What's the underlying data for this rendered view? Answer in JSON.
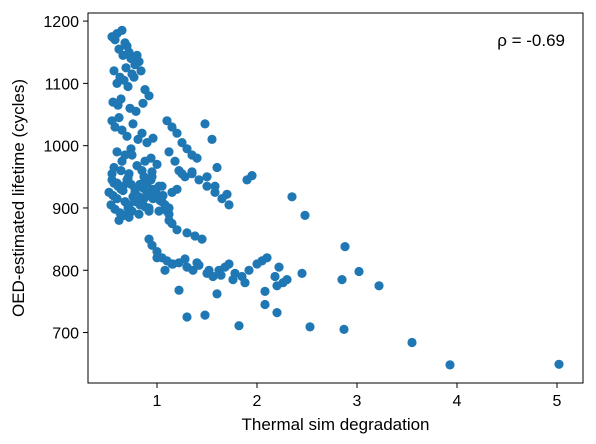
{
  "chart_data": {
    "type": "scatter",
    "title": "",
    "xlabel": "Thermal sim degradation",
    "ylabel": "OED-estimated lifetime (cycles)",
    "xlim": [
      0.31,
      5.26
    ],
    "ylim": [
      619,
      1213
    ],
    "xticks": [
      1,
      2,
      3,
      4,
      5
    ],
    "yticks": [
      700,
      800,
      900,
      1000,
      1100,
      1200
    ],
    "grid": false,
    "annotation": "ρ = -0.69",
    "marker_color": "#1f77b4",
    "series": [
      {
        "x": [
          0.55,
          0.6,
          0.65,
          0.68,
          0.7,
          0.72,
          0.58,
          0.62,
          0.66,
          0.74,
          0.78,
          0.8,
          0.57,
          0.63,
          0.69,
          0.75,
          0.82,
          0.6,
          0.67,
          0.71,
          0.77,
          0.84,
          0.88,
          0.92,
          0.56,
          0.61,
          0.64,
          0.73,
          0.79,
          0.86,
          0.55,
          0.58,
          0.62,
          0.65,
          0.7,
          0.76,
          0.81,
          0.85,
          0.9,
          0.96,
          0.6,
          0.68,
          0.74,
          0.88,
          0.94,
          1.0,
          0.57,
          0.64,
          0.72,
          0.8,
          0.87,
          0.95,
          0.55,
          0.6,
          0.66,
          0.71,
          0.78,
          0.83,
          0.9,
          0.98,
          0.52,
          0.56,
          0.6,
          0.64,
          0.68,
          0.72,
          0.76,
          0.8,
          0.84,
          0.88,
          0.92,
          0.96,
          1.0,
          1.05,
          1.1,
          0.54,
          0.58,
          0.63,
          0.67,
          0.71,
          0.75,
          0.79,
          0.83,
          0.87,
          0.91,
          0.95,
          0.99,
          1.03,
          1.08,
          1.12,
          0.57,
          0.61,
          0.66,
          0.7,
          0.74,
          0.78,
          0.82,
          0.86,
          0.9,
          0.94,
          0.98,
          1.02,
          1.06,
          0.55,
          0.65,
          0.75,
          0.85,
          0.95,
          1.05,
          1.15,
          0.62,
          0.72,
          0.82,
          0.92,
          1.02,
          1.12,
          1.1,
          1.15,
          1.2,
          1.25,
          1.3,
          1.35,
          1.4,
          1.48,
          1.55,
          1.6,
          1.12,
          1.18,
          1.22,
          1.28,
          1.35,
          1.42,
          1.5,
          1.58,
          1.65,
          1.72,
          1.12,
          1.15,
          1.2,
          1.3,
          1.38,
          1.45,
          1.2,
          1.25,
          1.35,
          1.5,
          1.58,
          1.7,
          1.9,
          1.95,
          2.35,
          0.92,
          0.95,
          1.0,
          1.05,
          1.1,
          1.15,
          1.22,
          1.3,
          1.36,
          1.42,
          1.5,
          1.56,
          1.62,
          1.68,
          1.72,
          1.78,
          1.85,
          1.92,
          2.0,
          2.05,
          2.1,
          2.18,
          2.22,
          2.26,
          2.3,
          2.45,
          1.0,
          1.08,
          1.16,
          1.28,
          1.4,
          1.52,
          1.64,
          1.76,
          1.88,
          2.2,
          2.48,
          2.88,
          3.02,
          2.85,
          3.22,
          1.22,
          1.3,
          1.48,
          1.6,
          1.82,
          2.08,
          2.2,
          2.53,
          2.87,
          3.55,
          3.93,
          5.02,
          2.08
        ],
        "y": [
          1175,
          1180,
          1185,
          1165,
          1160,
          1150,
          1170,
          1155,
          1145,
          1140,
          1130,
          1145,
          1120,
          1110,
          1125,
          1115,
          1135,
          1100,
          1105,
          1095,
          1110,
          1120,
          1090,
          1080,
          1070,
          1065,
          1075,
          1060,
          1055,
          1068,
          1040,
          1030,
          1045,
          1025,
          1015,
          1035,
          1010,
          1020,
          1005,
          1012,
          990,
          985,
          995,
          975,
          980,
          970,
          965,
          960,
          955,
          968,
          950,
          958,
          945,
          940,
          935,
          948,
          930,
          938,
          925,
          928,
          925,
          920,
          915,
          930,
          910,
          905,
          918,
          912,
          908,
          902,
          900,
          915,
          922,
          910,
          895,
          905,
          898,
          892,
          888,
          900,
          895,
          910,
          905,
          915,
          920,
          930,
          925,
          912,
          905,
          890,
          940,
          935,
          928,
          945,
          938,
          925,
          918,
          932,
          940,
          945,
          930,
          935,
          920,
          955,
          975,
          985,
          960,
          950,
          935,
          925,
          880,
          885,
          890,
          895,
          895,
          900,
          1040,
          1030,
          1020,
          1005,
          995,
          985,
          980,
          1035,
          1010,
          965,
          990,
          975,
          960,
          950,
          958,
          945,
          935,
          925,
          915,
          905,
          880,
          875,
          865,
          860,
          855,
          850,
          930,
          955,
          955,
          950,
          935,
          922,
          945,
          952,
          918,
          850,
          840,
          830,
          820,
          815,
          810,
          812,
          805,
          800,
          808,
          795,
          790,
          800,
          805,
          810,
          795,
          790,
          800,
          810,
          815,
          820,
          790,
          805,
          780,
          785,
          795,
          820,
          800,
          810,
          818,
          812,
          800,
          792,
          785,
          780,
          775,
          888,
          838,
          798,
          785,
          775,
          768,
          725,
          728,
          762,
          711,
          745,
          732,
          709,
          705,
          684,
          648,
          649,
          766
        ]
      }
    ]
  }
}
